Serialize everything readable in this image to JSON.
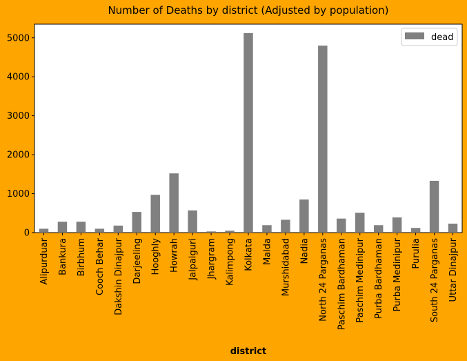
{
  "chart_data": {
    "type": "bar",
    "title": "Number of Deaths by district (Adjusted by population)",
    "xlabel": "district",
    "ylabel": "",
    "ylim": [
      0,
      5350
    ],
    "yticks": [
      0,
      1000,
      2000,
      3000,
      4000,
      5000
    ],
    "categories": [
      "Alipurduar",
      "Bankura",
      "Birbhum",
      "Cooch Behar",
      "Dakshin Dinajpur",
      "Darjeeling",
      "Hooghly",
      "Howrah",
      "Jalpaiguri",
      "Jhargram",
      "Kalimpong",
      "Kolkata",
      "Malda",
      "Murshidabad",
      "Nadia",
      "North 24 Parganas",
      "Paschim Bardhaman",
      "Paschim Medinipur",
      "Purba Bardhaman",
      "Purba Medinipur",
      "Purulia",
      "South 24 Parganas",
      "Uttar Dinajpur"
    ],
    "series": [
      {
        "name": "dead",
        "color": "#808080",
        "values": [
          100,
          280,
          280,
          100,
          180,
          530,
          970,
          1520,
          570,
          30,
          50,
          5120,
          190,
          330,
          850,
          4800,
          360,
          510,
          190,
          390,
          120,
          1330,
          230
        ]
      }
    ],
    "legend": {
      "position": "top-right",
      "show": true
    },
    "grid": false,
    "colors": {
      "background": "#FFA500",
      "plot_area": "#FFFFFF",
      "bar": "#808080"
    }
  }
}
